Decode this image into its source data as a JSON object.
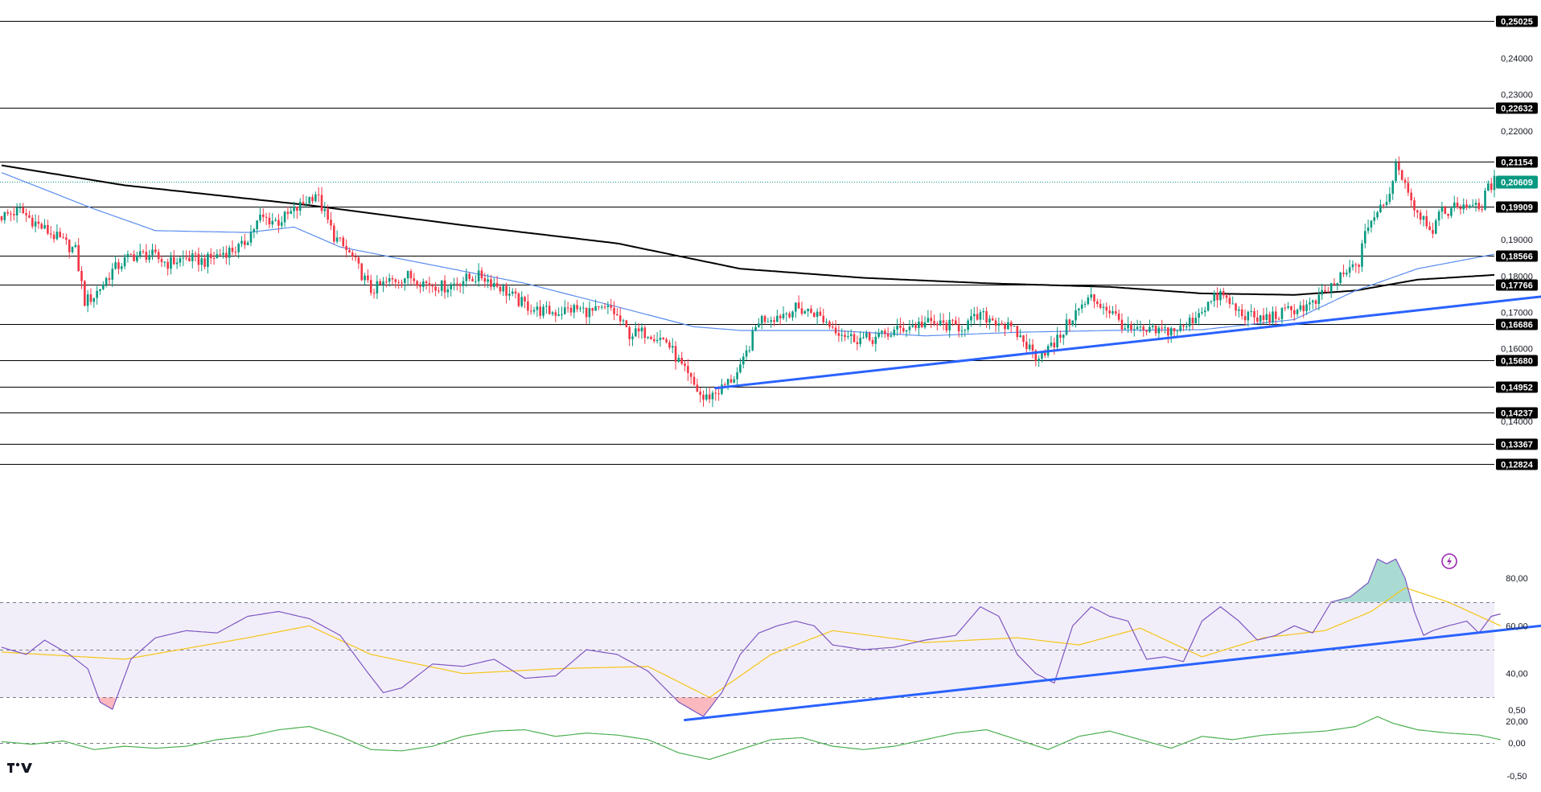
{
  "chart_data": [
    {
      "type": "candlestick",
      "colors": {
        "up": "#089981",
        "down": "#f23645",
        "ma50": "#5b8def",
        "ma200": "#000000",
        "trend": "#2962ff",
        "levels": "#000000",
        "current": "#089981"
      },
      "ylim": [
        0.1282,
        0.2512
      ],
      "y_ticks": [
        "0,24000",
        "0,23000",
        "0,22000",
        "0,19000",
        "0,18000",
        "0,17000",
        "0,16000",
        "0,14000"
      ],
      "y_tick_values": [
        0.24,
        0.23,
        0.22,
        0.19,
        0.18,
        0.17,
        0.16,
        0.14
      ],
      "levels": [
        {
          "label": "0,25025",
          "value": 0.25025
        },
        {
          "label": "0,22632",
          "value": 0.22632
        },
        {
          "label": "0,21154",
          "value": 0.21154
        },
        {
          "label": "0,19909",
          "value": 0.19909
        },
        {
          "label": "0,18566",
          "value": 0.18566
        },
        {
          "label": "0,17766",
          "value": 0.17766
        },
        {
          "label": "0,16686",
          "value": 0.16686
        },
        {
          "label": "0,15680",
          "value": 0.1568
        },
        {
          "label": "0,14952",
          "value": 0.14952
        },
        {
          "label": "0,14237",
          "value": 0.14237
        },
        {
          "label": "0,13367",
          "value": 0.13367
        },
        {
          "label": "0,12824",
          "value": 0.12824
        }
      ],
      "current_price": {
        "label": "0,20609",
        "value": 0.20609
      },
      "bar_count": 250,
      "close_path": [
        [
          0,
          0.1965
        ],
        [
          6,
          0.198
        ],
        [
          12,
          0.194
        ],
        [
          18,
          0.1905
        ],
        [
          24,
          0.187
        ],
        [
          27,
          0.173
        ],
        [
          30,
          0.1745
        ],
        [
          36,
          0.1815
        ],
        [
          42,
          0.1855
        ],
        [
          48,
          0.186
        ],
        [
          54,
          0.1835
        ],
        [
          60,
          0.185
        ],
        [
          66,
          0.184
        ],
        [
          72,
          0.1865
        ],
        [
          78,
          0.188
        ],
        [
          84,
          0.196
        ],
        [
          90,
          0.195
        ],
        [
          96,
          0.1985
        ],
        [
          102,
          0.203
        ],
        [
          108,
          0.191
        ],
        [
          114,
          0.185
        ],
        [
          120,
          0.176
        ],
        [
          126,
          0.1785
        ],
        [
          132,
          0.18
        ],
        [
          138,
          0.178
        ],
        [
          144,
          0.177
        ],
        [
          150,
          0.179
        ],
        [
          156,
          0.18
        ],
        [
          162,
          0.177
        ],
        [
          168,
          0.173
        ],
        [
          174,
          0.1705
        ],
        [
          180,
          0.17
        ],
        [
          186,
          0.171
        ],
        [
          192,
          0.17
        ],
        [
          198,
          0.171
        ],
        [
          204,
          0.164
        ],
        [
          210,
          0.1645
        ],
        [
          216,
          0.162
        ],
        [
          222,
          0.1535
        ],
        [
          228,
          0.146
        ],
        [
          234,
          0.149
        ],
        [
          240,
          0.154
        ],
        [
          246,
          0.168
        ],
        [
          252,
          0.169
        ],
        [
          258,
          0.171
        ],
        [
          264,
          0.17
        ],
        [
          270,
          0.166
        ],
        [
          276,
          0.163
        ],
        [
          282,
          0.1625
        ],
        [
          288,
          0.164
        ],
        [
          294,
          0.166
        ],
        [
          300,
          0.167
        ],
        [
          306,
          0.1665
        ],
        [
          312,
          0.166
        ],
        [
          318,
          0.169
        ],
        [
          324,
          0.1675
        ],
        [
          330,
          0.164
        ],
        [
          336,
          0.158
        ],
        [
          342,
          0.161
        ],
        [
          348,
          0.169
        ],
        [
          354,
          0.174
        ],
        [
          360,
          0.1705
        ],
        [
          366,
          0.165
        ],
        [
          372,
          0.1645
        ],
        [
          378,
          0.165
        ],
        [
          384,
          0.1655
        ],
        [
          390,
          0.171
        ],
        [
          396,
          0.175
        ],
        [
          402,
          0.17
        ],
        [
          408,
          0.168
        ],
        [
          414,
          0.169
        ],
        [
          420,
          0.171
        ],
        [
          426,
          0.172
        ],
        [
          432,
          0.177
        ],
        [
          438,
          0.1815
        ],
        [
          441,
          0.184
        ],
        [
          444,
          0.1945
        ],
        [
          447,
          0.1975
        ],
        [
          450,
          0.2
        ],
        [
          453,
          0.211
        ],
        [
          456,
          0.206
        ],
        [
          459,
          0.199
        ],
        [
          462,
          0.196
        ],
        [
          465,
          0.193
        ],
        [
          468,
          0.1975
        ],
        [
          471,
          0.1985
        ],
        [
          474,
          0.1995
        ],
        [
          477,
          0.2
        ],
        [
          480,
          0.198
        ],
        [
          483,
          0.204
        ],
        [
          485,
          0.2061
        ]
      ],
      "ma50_path": [
        [
          0,
          0.2085
        ],
        [
          30,
          0.1985
        ],
        [
          50,
          0.1925
        ],
        [
          80,
          0.192
        ],
        [
          95,
          0.1935
        ],
        [
          110,
          0.188
        ],
        [
          140,
          0.183
        ],
        [
          170,
          0.178
        ],
        [
          200,
          0.1715
        ],
        [
          225,
          0.166
        ],
        [
          240,
          0.165
        ],
        [
          270,
          0.165
        ],
        [
          300,
          0.1635
        ],
        [
          330,
          0.1645
        ],
        [
          360,
          0.165
        ],
        [
          390,
          0.1652
        ],
        [
          420,
          0.168
        ],
        [
          440,
          0.176
        ],
        [
          460,
          0.182
        ],
        [
          485,
          0.186
        ]
      ],
      "ma200_path": [
        [
          0,
          0.2105
        ],
        [
          40,
          0.205
        ],
        [
          100,
          0.1995
        ],
        [
          150,
          0.194
        ],
        [
          200,
          0.189
        ],
        [
          240,
          0.182
        ],
        [
          280,
          0.1795
        ],
        [
          320,
          0.178
        ],
        [
          360,
          0.177
        ],
        [
          390,
          0.1752
        ],
        [
          420,
          0.1748
        ],
        [
          440,
          0.176
        ],
        [
          460,
          0.179
        ],
        [
          485,
          0.1803
        ]
      ],
      "trendline": [
        [
          232,
          0.1491
        ],
        [
          500,
          0.1743
        ]
      ]
    },
    {
      "type": "line",
      "ylim": [
        17,
        85
      ],
      "y_ticks": [
        "80,00",
        "60,00",
        "40,00",
        "20,00"
      ],
      "y_tick_values": [
        80,
        60,
        40,
        20
      ],
      "band": [
        30,
        70
      ],
      "mid": 50,
      "colors": {
        "line": "#7e57c2",
        "signal": "#f5c518",
        "band": "#7e57c2",
        "overbought": "#089981",
        "oversold": "#f23645",
        "trend": "#2962ff"
      },
      "path": [
        [
          0,
          51
        ],
        [
          8,
          48
        ],
        [
          14,
          54
        ],
        [
          22,
          48
        ],
        [
          28,
          42
        ],
        [
          32,
          28
        ],
        [
          36,
          25
        ],
        [
          42,
          46
        ],
        [
          50,
          55
        ],
        [
          60,
          58
        ],
        [
          70,
          57
        ],
        [
          80,
          64
        ],
        [
          90,
          66
        ],
        [
          100,
          63
        ],
        [
          110,
          56
        ],
        [
          118,
          42
        ],
        [
          124,
          32
        ],
        [
          130,
          34
        ],
        [
          140,
          44
        ],
        [
          150,
          43
        ],
        [
          160,
          46
        ],
        [
          170,
          38
        ],
        [
          180,
          39
        ],
        [
          190,
          50
        ],
        [
          200,
          48
        ],
        [
          210,
          41
        ],
        [
          220,
          28
        ],
        [
          228,
          22
        ],
        [
          234,
          32
        ],
        [
          240,
          48
        ],
        [
          246,
          57
        ],
        [
          252,
          60
        ],
        [
          258,
          62
        ],
        [
          264,
          60
        ],
        [
          270,
          52
        ],
        [
          280,
          50
        ],
        [
          290,
          51
        ],
        [
          300,
          54
        ],
        [
          310,
          56
        ],
        [
          318,
          68
        ],
        [
          324,
          64
        ],
        [
          330,
          48
        ],
        [
          336,
          40
        ],
        [
          342,
          36
        ],
        [
          348,
          60
        ],
        [
          354,
          68
        ],
        [
          360,
          64
        ],
        [
          366,
          62
        ],
        [
          372,
          46
        ],
        [
          378,
          47
        ],
        [
          384,
          45
        ],
        [
          390,
          62
        ],
        [
          396,
          68
        ],
        [
          402,
          62
        ],
        [
          408,
          54
        ],
        [
          414,
          56
        ],
        [
          420,
          60
        ],
        [
          426,
          57
        ],
        [
          432,
          70
        ],
        [
          438,
          72
        ],
        [
          444,
          78
        ],
        [
          447,
          88
        ],
        [
          450,
          86
        ],
        [
          453,
          88
        ],
        [
          456,
          80
        ],
        [
          459,
          66
        ],
        [
          462,
          56
        ],
        [
          465,
          58
        ],
        [
          470,
          60
        ],
        [
          476,
          62
        ],
        [
          480,
          57
        ],
        [
          484,
          64
        ],
        [
          487,
          65
        ]
      ],
      "signal_path": [
        [
          0,
          49
        ],
        [
          40,
          46
        ],
        [
          80,
          55
        ],
        [
          100,
          60
        ],
        [
          120,
          48
        ],
        [
          150,
          40
        ],
        [
          180,
          42
        ],
        [
          210,
          43
        ],
        [
          230,
          30
        ],
        [
          250,
          48
        ],
        [
          270,
          58
        ],
        [
          300,
          53
        ],
        [
          330,
          55
        ],
        [
          350,
          52
        ],
        [
          370,
          59
        ],
        [
          390,
          47
        ],
        [
          410,
          55
        ],
        [
          430,
          58
        ],
        [
          445,
          66
        ],
        [
          456,
          76
        ],
        [
          470,
          70
        ],
        [
          487,
          60
        ]
      ],
      "trendline": [
        [
          222,
          20.5
        ],
        [
          500,
          60
        ]
      ]
    },
    {
      "type": "line",
      "ylim": [
        -0.45,
        0.45
      ],
      "y_ticks": [
        "0,50",
        "0,00",
        "-0,50"
      ],
      "y_tick_values": [
        0.5,
        0.0,
        -0.5
      ],
      "colors": {
        "line": "#4caf50",
        "zero": "#787b86"
      },
      "path": [
        [
          0,
          0.02
        ],
        [
          10,
          -0.02
        ],
        [
          20,
          0.03
        ],
        [
          30,
          -0.1
        ],
        [
          40,
          -0.05
        ],
        [
          50,
          -0.08
        ],
        [
          60,
          -0.05
        ],
        [
          70,
          0.05
        ],
        [
          80,
          0.1
        ],
        [
          90,
          0.2
        ],
        [
          100,
          0.25
        ],
        [
          110,
          0.1
        ],
        [
          120,
          -0.1
        ],
        [
          130,
          -0.12
        ],
        [
          140,
          -0.05
        ],
        [
          150,
          0.1
        ],
        [
          160,
          0.18
        ],
        [
          170,
          0.2
        ],
        [
          180,
          0.1
        ],
        [
          190,
          0.15
        ],
        [
          200,
          0.12
        ],
        [
          210,
          0.05
        ],
        [
          220,
          -0.15
        ],
        [
          230,
          -0.25
        ],
        [
          240,
          -0.1
        ],
        [
          250,
          0.05
        ],
        [
          260,
          0.08
        ],
        [
          270,
          -0.05
        ],
        [
          280,
          -0.1
        ],
        [
          290,
          -0.05
        ],
        [
          300,
          0.05
        ],
        [
          310,
          0.15
        ],
        [
          320,
          0.2
        ],
        [
          330,
          0.05
        ],
        [
          340,
          -0.1
        ],
        [
          350,
          0.1
        ],
        [
          360,
          0.18
        ],
        [
          370,
          0.05
        ],
        [
          380,
          -0.08
        ],
        [
          390,
          0.1
        ],
        [
          400,
          0.05
        ],
        [
          410,
          0.12
        ],
        [
          420,
          0.15
        ],
        [
          430,
          0.18
        ],
        [
          440,
          0.25
        ],
        [
          447,
          0.4
        ],
        [
          452,
          0.3
        ],
        [
          460,
          0.2
        ],
        [
          470,
          0.15
        ],
        [
          480,
          0.12
        ],
        [
          487,
          0.05
        ]
      ]
    }
  ],
  "branding": {
    "logo_text": "TV"
  }
}
